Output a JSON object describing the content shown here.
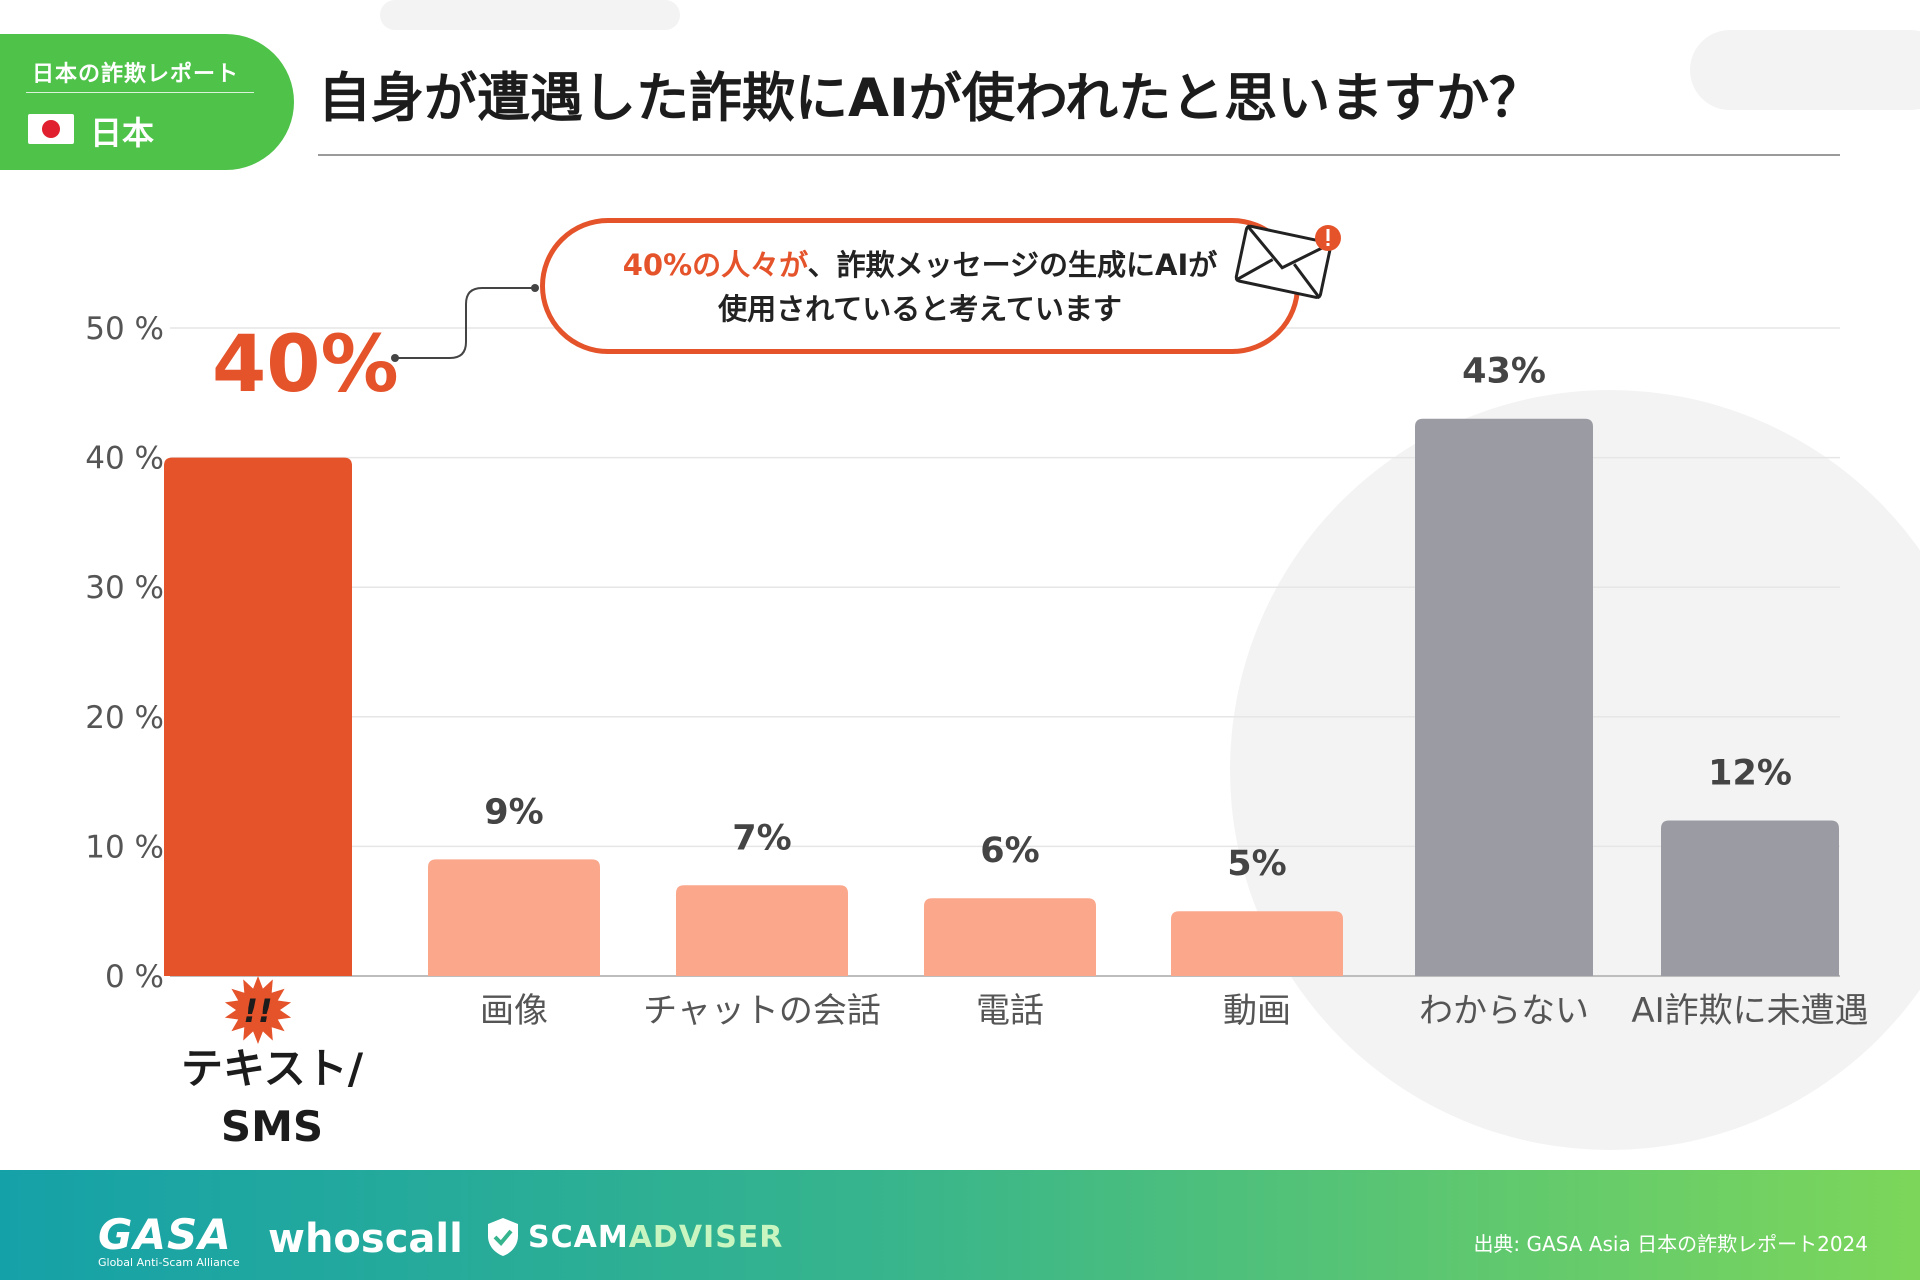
{
  "badge": {
    "report": "日本の詐欺レポート",
    "country": "日本"
  },
  "title": "自身が遭遇した詐欺にAIが使われたと思いますか？",
  "callout": {
    "highlight": "40%の人々が",
    "line1_rest": "、詐欺メッセージの生成にAIが",
    "line2": "使用されていると考えています"
  },
  "highlight_value": "40%",
  "burst_text": "!!",
  "colors": {
    "primary": "#e5532b",
    "light": "#fba78c",
    "gray": "#9b9ca3",
    "grid": "#e6e6e6"
  },
  "chart_data": {
    "type": "bar",
    "title": "自身が遭遇した詐欺にAIが使われたと思いますか？",
    "categories": [
      "テキスト/SMS",
      "画像",
      "チャットの会話",
      "電話",
      "動画",
      "わからない",
      "AI詐欺に未遭遇"
    ],
    "display_labels": [
      [
        "テキスト/",
        "SMS"
      ],
      [
        "画像"
      ],
      [
        "チャットの会話"
      ],
      [
        "電話"
      ],
      [
        "動画"
      ],
      [
        "わからない"
      ],
      [
        "AI詐欺に未遭遇"
      ]
    ],
    "values": [
      40,
      9,
      7,
      6,
      5,
      43,
      12
    ],
    "value_labels": [
      "",
      "9%",
      "7%",
      "6%",
      "5%",
      "43%",
      "12%"
    ],
    "bar_colors": [
      "primary",
      "light",
      "light",
      "light",
      "light",
      "gray",
      "gray"
    ],
    "y_ticks": [
      0,
      10,
      20,
      30,
      40,
      50
    ],
    "y_tick_labels": [
      "0 %",
      "10 %",
      "20 %",
      "30 %",
      "40 %",
      "50 %"
    ],
    "ylim": [
      0,
      50
    ],
    "xlabel": "",
    "ylabel": "",
    "grid": true
  },
  "footer": {
    "gasa": "GASA",
    "gasa_sub": "Global Anti-Scam Alliance",
    "whoscall": "whoscall",
    "scam": "SCAM",
    "adviser": "ADVISER",
    "source": "出典:  GASA Asia 日本の詐欺レポート2024"
  }
}
